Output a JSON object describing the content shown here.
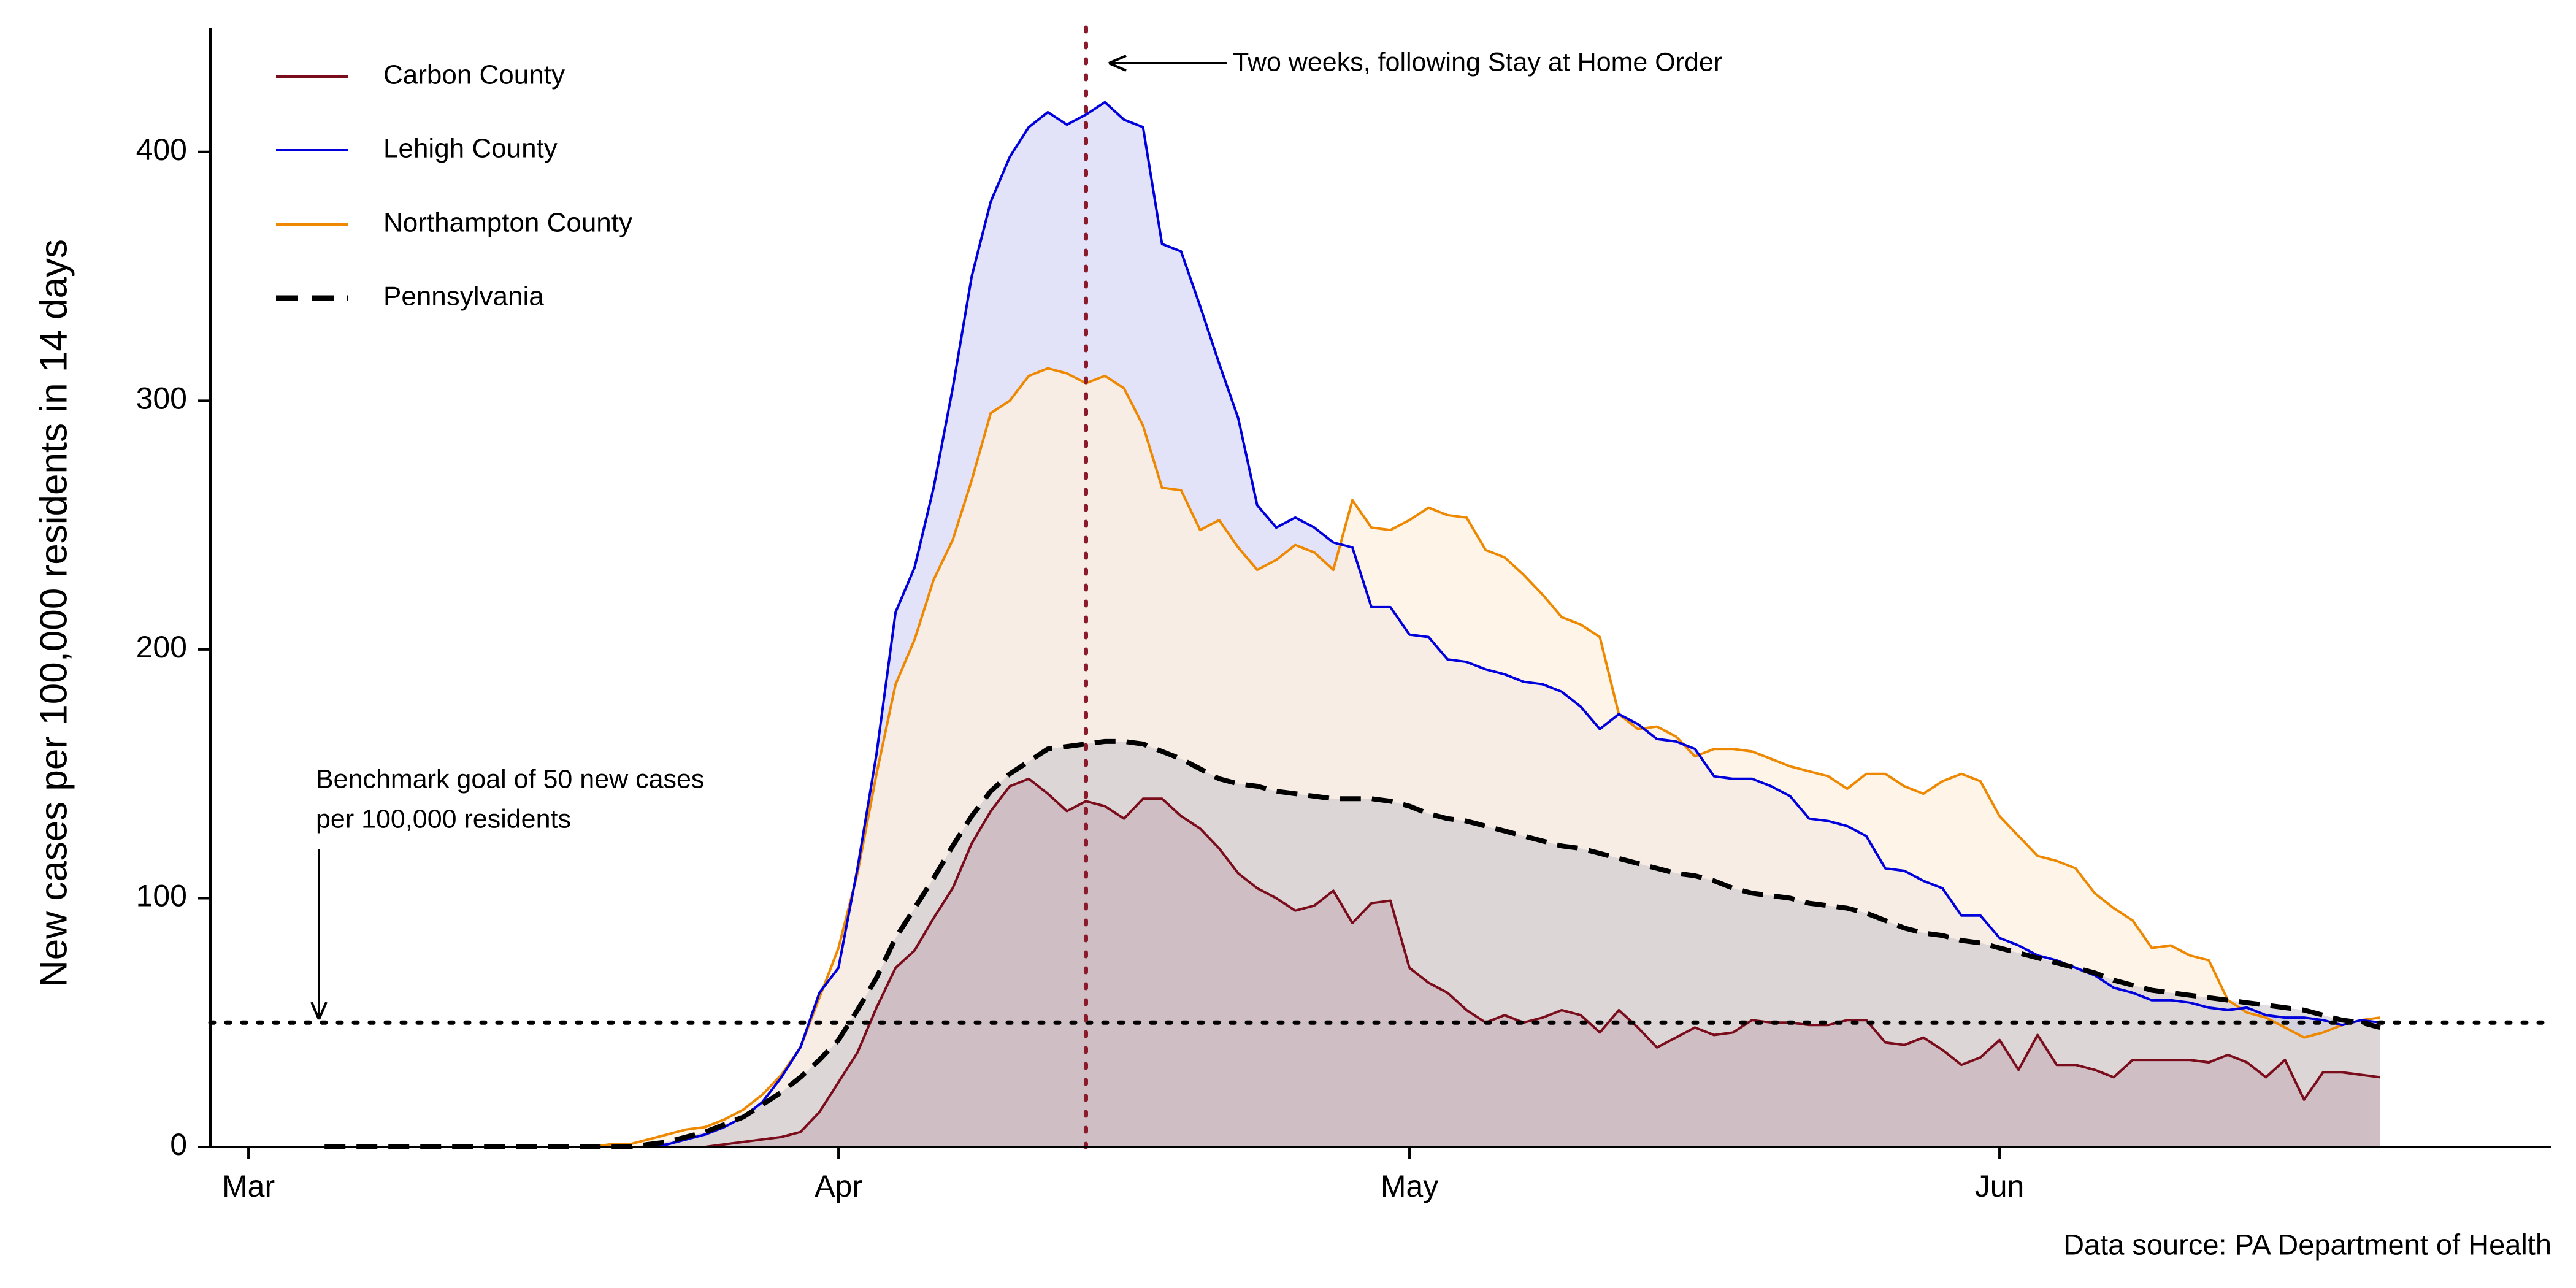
{
  "chart_data": {
    "type": "area",
    "ylabel": "New cases per 100,000 residents in 14 days",
    "ylim": [
      0,
      450
    ],
    "yticks": [
      0,
      100,
      200,
      300,
      400
    ],
    "x_range": [
      "2020-02-28",
      "2020-06-30"
    ],
    "xticks": [
      {
        "date": "2020-03-01",
        "label": "Mar"
      },
      {
        "date": "2020-04-01",
        "label": "Apr"
      },
      {
        "date": "2020-05-01",
        "label": "May"
      },
      {
        "date": "2020-06-01",
        "label": "Jun"
      }
    ],
    "x_dates": [
      "2020-03-05",
      "2020-03-06",
      "2020-03-07",
      "2020-03-08",
      "2020-03-09",
      "2020-03-10",
      "2020-03-11",
      "2020-03-12",
      "2020-03-13",
      "2020-03-14",
      "2020-03-15",
      "2020-03-16",
      "2020-03-17",
      "2020-03-18",
      "2020-03-19",
      "2020-03-20",
      "2020-03-21",
      "2020-03-22",
      "2020-03-23",
      "2020-03-24",
      "2020-03-25",
      "2020-03-26",
      "2020-03-27",
      "2020-03-28",
      "2020-03-29",
      "2020-03-30",
      "2020-03-31",
      "2020-04-01",
      "2020-04-02",
      "2020-04-03",
      "2020-04-04",
      "2020-04-05",
      "2020-04-06",
      "2020-04-07",
      "2020-04-08",
      "2020-04-09",
      "2020-04-10",
      "2020-04-11",
      "2020-04-12",
      "2020-04-13",
      "2020-04-14",
      "2020-04-15",
      "2020-04-16",
      "2020-04-17",
      "2020-04-18",
      "2020-04-19",
      "2020-04-20",
      "2020-04-21",
      "2020-04-22",
      "2020-04-23",
      "2020-04-24",
      "2020-04-25",
      "2020-04-26",
      "2020-04-27",
      "2020-04-28",
      "2020-04-29",
      "2020-04-30",
      "2020-05-01",
      "2020-05-02",
      "2020-05-03",
      "2020-05-04",
      "2020-05-05",
      "2020-05-06",
      "2020-05-07",
      "2020-05-08",
      "2020-05-09",
      "2020-05-10",
      "2020-05-11",
      "2020-05-12",
      "2020-05-13",
      "2020-05-14",
      "2020-05-15",
      "2020-05-16",
      "2020-05-17",
      "2020-05-18",
      "2020-05-19",
      "2020-05-20",
      "2020-05-21",
      "2020-05-22",
      "2020-05-23",
      "2020-05-24",
      "2020-05-25",
      "2020-05-26",
      "2020-05-27",
      "2020-05-28",
      "2020-05-29",
      "2020-05-30",
      "2020-05-31",
      "2020-06-01",
      "2020-06-02",
      "2020-06-03",
      "2020-06-04",
      "2020-06-05",
      "2020-06-06",
      "2020-06-07",
      "2020-06-08",
      "2020-06-09",
      "2020-06-10",
      "2020-06-11",
      "2020-06-12",
      "2020-06-13",
      "2020-06-14",
      "2020-06-15",
      "2020-06-16",
      "2020-06-17",
      "2020-06-18",
      "2020-06-19",
      "2020-06-20",
      "2020-06-21"
    ],
    "series": [
      {
        "name": "Lehigh County",
        "color": "#0000dd",
        "fill": "#e2e2f8",
        "line_style": "solid",
        "values": [
          0,
          0,
          0,
          0,
          0,
          0,
          0,
          0,
          0,
          0,
          0,
          0,
          0,
          0,
          0,
          0,
          0,
          0,
          1,
          3,
          5,
          8,
          12,
          18,
          28,
          40,
          62,
          72,
          112,
          158,
          215,
          233,
          265,
          305,
          350,
          380,
          398,
          410,
          416,
          411,
          415,
          420,
          413,
          410,
          363,
          360,
          338,
          315,
          293,
          258,
          249,
          253,
          249,
          243,
          241,
          217,
          217,
          206,
          205,
          196,
          195,
          192,
          190,
          187,
          186,
          183,
          177,
          168,
          174,
          170,
          164,
          163,
          160,
          149,
          148,
          148,
          145,
          141,
          132,
          131,
          129,
          125,
          112,
          111,
          107,
          104,
          93,
          93,
          84,
          81,
          77,
          75,
          72,
          69,
          64,
          62,
          59,
          59,
          58,
          56,
          55,
          56,
          53,
          52,
          52,
          51,
          49,
          51,
          50
        ]
      },
      {
        "name": "Northampton County",
        "color": "#ee8800",
        "fill": "#fdf0df",
        "line_style": "solid",
        "values": [
          0,
          0,
          0,
          0,
          0,
          0,
          0,
          0,
          0,
          0,
          0,
          0,
          0,
          0,
          0,
          1,
          1,
          3,
          5,
          7,
          8,
          11,
          15,
          21,
          29,
          40,
          60,
          80,
          110,
          150,
          186,
          204,
          228,
          244,
          268,
          295,
          300,
          310,
          313,
          311,
          307,
          310,
          305,
          290,
          265,
          264,
          248,
          252,
          241,
          232,
          236,
          242,
          239,
          232,
          260,
          249,
          248,
          252,
          257,
          254,
          253,
          240,
          237,
          230,
          222,
          213,
          210,
          205,
          174,
          168,
          169,
          165,
          157,
          160,
          160,
          159,
          156,
          153,
          151,
          149,
          144,
          150,
          150,
          145,
          142,
          147,
          150,
          147,
          133,
          125,
          117,
          115,
          112,
          102,
          96,
          91,
          80,
          81,
          77,
          75,
          59,
          54,
          52,
          48,
          44,
          46,
          49,
          51,
          52
        ]
      },
      {
        "name": "Carbon County",
        "color": "#7a0c1c",
        "fill": "#c7afb8",
        "line_style": "solid",
        "values": [
          0,
          0,
          0,
          0,
          0,
          0,
          0,
          0,
          0,
          0,
          0,
          0,
          0,
          0,
          0,
          0,
          0,
          0,
          0,
          0,
          0,
          1,
          2,
          3,
          4,
          6,
          14,
          26,
          38,
          56,
          72,
          79,
          92,
          104,
          122,
          135,
          145,
          148,
          142,
          135,
          139,
          137,
          132,
          140,
          140,
          133,
          128,
          120,
          110,
          104,
          100,
          95,
          97,
          103,
          90,
          98,
          99,
          72,
          66,
          62,
          55,
          50,
          53,
          50,
          52,
          55,
          53,
          46,
          55,
          48,
          40,
          44,
          48,
          45,
          46,
          51,
          50,
          50,
          49,
          49,
          51,
          51,
          42,
          41,
          44,
          39,
          33,
          36,
          43,
          31,
          45,
          33,
          33,
          31,
          28,
          35,
          35,
          35,
          35,
          34,
          37,
          34,
          28,
          35,
          19,
          30,
          30,
          29,
          28
        ]
      },
      {
        "name": "Pennsylvania",
        "color": "#000000",
        "fill": "#c8c2ca",
        "line_style": "dashed",
        "values": [
          0,
          0,
          0,
          0,
          0,
          0,
          0,
          0,
          0,
          0,
          0,
          0,
          0,
          0,
          0,
          0,
          0,
          1,
          2,
          4,
          6,
          9,
          12,
          17,
          22,
          28,
          35,
          43,
          55,
          68,
          84,
          96,
          108,
          121,
          133,
          143,
          150,
          155,
          160,
          161,
          162,
          163,
          163,
          162,
          159,
          156,
          152,
          148,
          146,
          145,
          143,
          142,
          141,
          140,
          140,
          140,
          139,
          137,
          134,
          132,
          131,
          129,
          127,
          125,
          123,
          121,
          120,
          118,
          116,
          114,
          112,
          110,
          109,
          107,
          104,
          102,
          101,
          100,
          98,
          97,
          96,
          94,
          91,
          88,
          86,
          85,
          83,
          82,
          80,
          78,
          76,
          74,
          72,
          70,
          67,
          65,
          63,
          62,
          61,
          60,
          59,
          58,
          57,
          56,
          55,
          53,
          51,
          50,
          48
        ]
      }
    ],
    "reference_lines": [
      {
        "axis": "y",
        "value": 50,
        "style": "dotted",
        "color": "#000000"
      },
      {
        "axis": "x",
        "date": "2020-04-14",
        "style": "dotted",
        "color": "#8b1a2b"
      }
    ],
    "annotations": {
      "stay_home": "Two weeks, following Stay at Home Order",
      "benchmark_line1": "Benchmark goal of 50 new cases",
      "benchmark_line2": "per 100,000 residents"
    },
    "source": "Data source: PA Department of Health",
    "legend": {
      "placement": "top-left",
      "order": [
        "Carbon County",
        "Lehigh County",
        "Northampton County",
        "Pennsylvania"
      ]
    },
    "grid": false
  }
}
